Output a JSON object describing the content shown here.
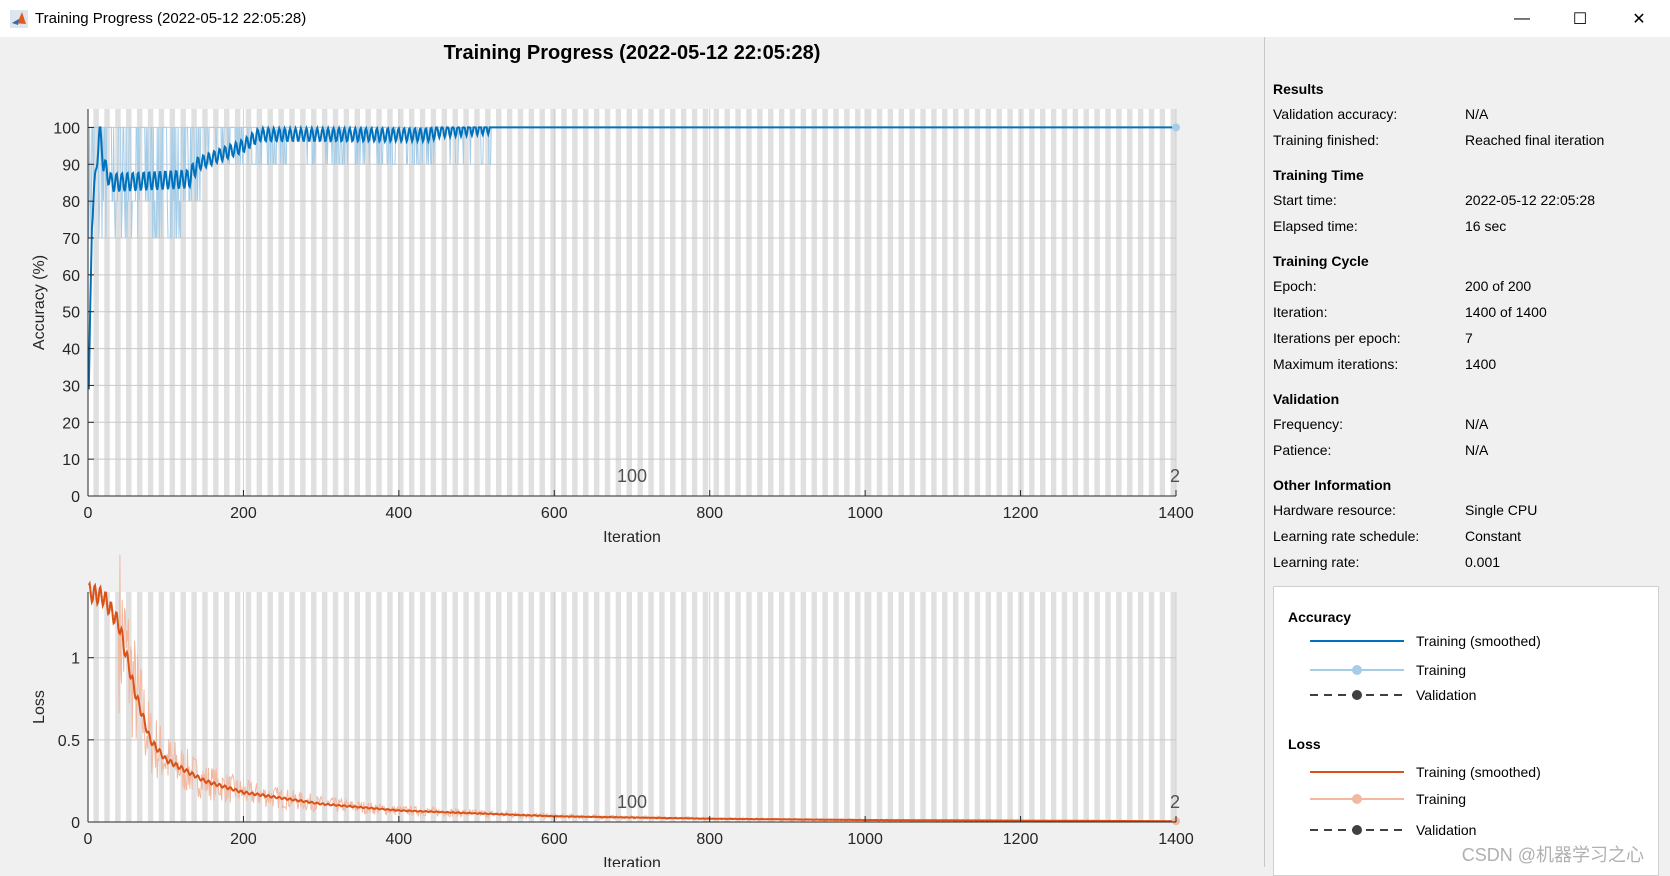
{
  "window": {
    "title": "Training Progress (2022-05-12 22:05:28)",
    "minimize_icon": "minimize-icon",
    "maximize_icon": "maximize-icon",
    "close_icon": "close-icon"
  },
  "figure_title": "Training Progress (2022-05-12 22:05:28)",
  "info": {
    "sections": [
      {
        "title": "Results",
        "rows": [
          [
            "Validation accuracy:",
            "N/A"
          ],
          [
            "Training finished:",
            "Reached final iteration"
          ]
        ]
      },
      {
        "title": "Training Time",
        "rows": [
          [
            "Start time:",
            "2022-05-12 22:05:28"
          ],
          [
            "Elapsed time:",
            "16 sec"
          ]
        ]
      },
      {
        "title": "Training Cycle",
        "rows": [
          [
            "Epoch:",
            "200 of 200"
          ],
          [
            "Iteration:",
            "1400 of 1400"
          ],
          [
            "Iterations per epoch:",
            "7"
          ],
          [
            "Maximum iterations:",
            "1400"
          ]
        ]
      },
      {
        "title": "Validation",
        "rows": [
          [
            "Frequency:",
            "N/A"
          ],
          [
            "Patience:",
            "N/A"
          ]
        ]
      },
      {
        "title": "Other Information",
        "rows": [
          [
            "Hardware resource:",
            "Single CPU"
          ],
          [
            "Learning rate schedule:",
            "Constant"
          ],
          [
            "Learning rate:",
            "0.001"
          ]
        ]
      }
    ]
  },
  "legend": {
    "accuracy_title": "Accuracy",
    "loss_title": "Loss",
    "items": [
      "Training (smoothed)",
      "Training",
      "Validation"
    ]
  },
  "watermark": "CSDN @机器学习之心",
  "colors": {
    "acc_smoothed": "#0072bd",
    "acc_raw": "#a6cde8",
    "loss_smoothed": "#d95319",
    "loss_raw": "#f2b8a0",
    "validation": "#404040",
    "epoch_band": "#e0e0e0"
  },
  "chart_data": [
    {
      "type": "line",
      "xlabel": "Iteration",
      "ylabel": "Accuracy (%)",
      "xlim": [
        0,
        1400
      ],
      "ylim": [
        0,
        105
      ],
      "xticks": [
        0,
        200,
        400,
        600,
        800,
        1000,
        1200,
        1400
      ],
      "yticks": [
        0,
        10,
        20,
        30,
        40,
        50,
        60,
        70,
        80,
        90,
        100
      ],
      "epoch_labels": [
        "100",
        "2"
      ],
      "iterations_per_epoch": 7,
      "grid": true,
      "series": [
        {
          "name": "Training (smoothed)",
          "x": [
            0,
            5,
            15,
            20,
            30,
            130,
            140,
            200,
            220,
            440,
            450,
            520,
            1400
          ],
          "y": [
            15,
            75,
            100,
            90,
            85,
            86,
            90,
            95,
            98,
            98,
            99,
            100,
            100
          ]
        },
        {
          "name": "Training",
          "ranges": [
            {
              "x": [
                0,
                120
              ],
              "y": [
                70,
                100
              ]
            },
            {
              "x": [
                120,
                145
              ],
              "y": [
                80,
                100
              ]
            },
            {
              "x": [
                145,
                520
              ],
              "y": [
                90,
                100
              ]
            },
            {
              "x": [
                520,
                1400
              ],
              "y": [
                100,
                100
              ]
            }
          ]
        }
      ]
    },
    {
      "type": "line",
      "xlabel": "Iteration",
      "ylabel": "Loss",
      "xlim": [
        0,
        1400
      ],
      "ylim": [
        0,
        1.4
      ],
      "xticks": [
        0,
        200,
        400,
        600,
        800,
        1000,
        1200,
        1400
      ],
      "yticks": [
        0,
        0.5,
        1
      ],
      "epoch_labels": [
        "100",
        "2"
      ],
      "iterations_per_epoch": 7,
      "grid": true,
      "series": [
        {
          "name": "Training (smoothed)",
          "x": [
            0,
            20,
            40,
            60,
            80,
            100,
            150,
            200,
            300,
            400,
            600,
            800,
            1000,
            1400
          ],
          "y": [
            1.4,
            1.37,
            1.2,
            0.8,
            0.5,
            0.38,
            0.25,
            0.18,
            0.11,
            0.07,
            0.035,
            0.02,
            0.012,
            0.005
          ]
        }
      ]
    }
  ]
}
